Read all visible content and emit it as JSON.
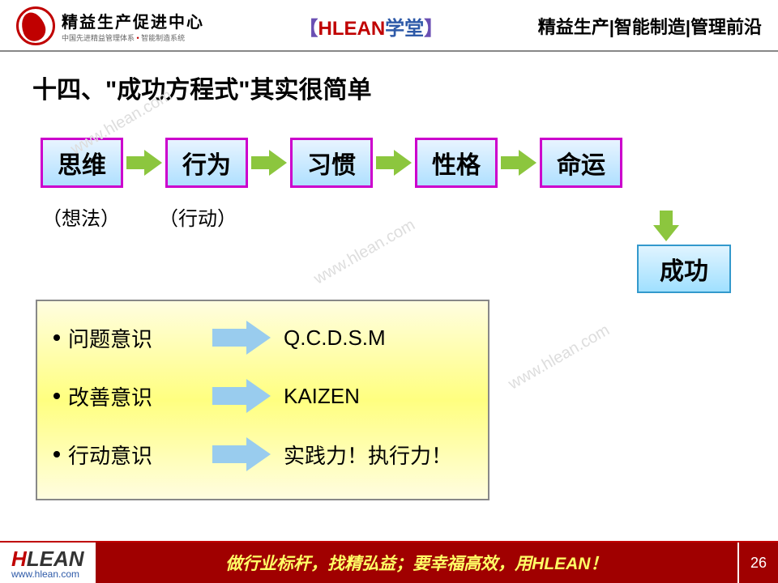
{
  "header": {
    "logo_main": "精益生产促进中心",
    "logo_sub_1": "中国先进精益管理体系",
    "logo_sub_2": "智能制造系统",
    "center_bracket_l": "【",
    "center_hlean": "HLEAN",
    "center_label": "学堂",
    "center_bracket_r": "】",
    "right": "精益生产|智能制造|管理前沿"
  },
  "title": "十四、\"成功方程式\"其实很简单",
  "flow": {
    "boxes": [
      "思维",
      "行为",
      "习惯",
      "性格",
      "命运"
    ],
    "sub": [
      "（想法）",
      "（行动）"
    ],
    "success": "成功",
    "box_border": "#cc00cc",
    "box_bg_top": "#e8f4ff",
    "box_bg_bottom": "#b0e0ff",
    "arrow_color": "#8cc63e",
    "success_border": "#3399cc"
  },
  "panel": {
    "rows": [
      {
        "left": "问题意识",
        "right": "Q.C.D.S.M"
      },
      {
        "left": "改善意识",
        "right": "KAIZEN"
      },
      {
        "left": "行动意识",
        "right": "实践力！执行力！"
      }
    ],
    "bg_color": "#ffff80",
    "arrow_color": "#99ccee"
  },
  "footer": {
    "logo_h": "H",
    "logo_lean": "LEAN",
    "url": "www.hlean.com",
    "slogan": "做行业标杆，找精弘益；要幸福高效，用HLEAN！",
    "page": "26",
    "bar_bg": "#a00000",
    "text_color": "#ffff66"
  },
  "watermark": "www.hlean.com"
}
